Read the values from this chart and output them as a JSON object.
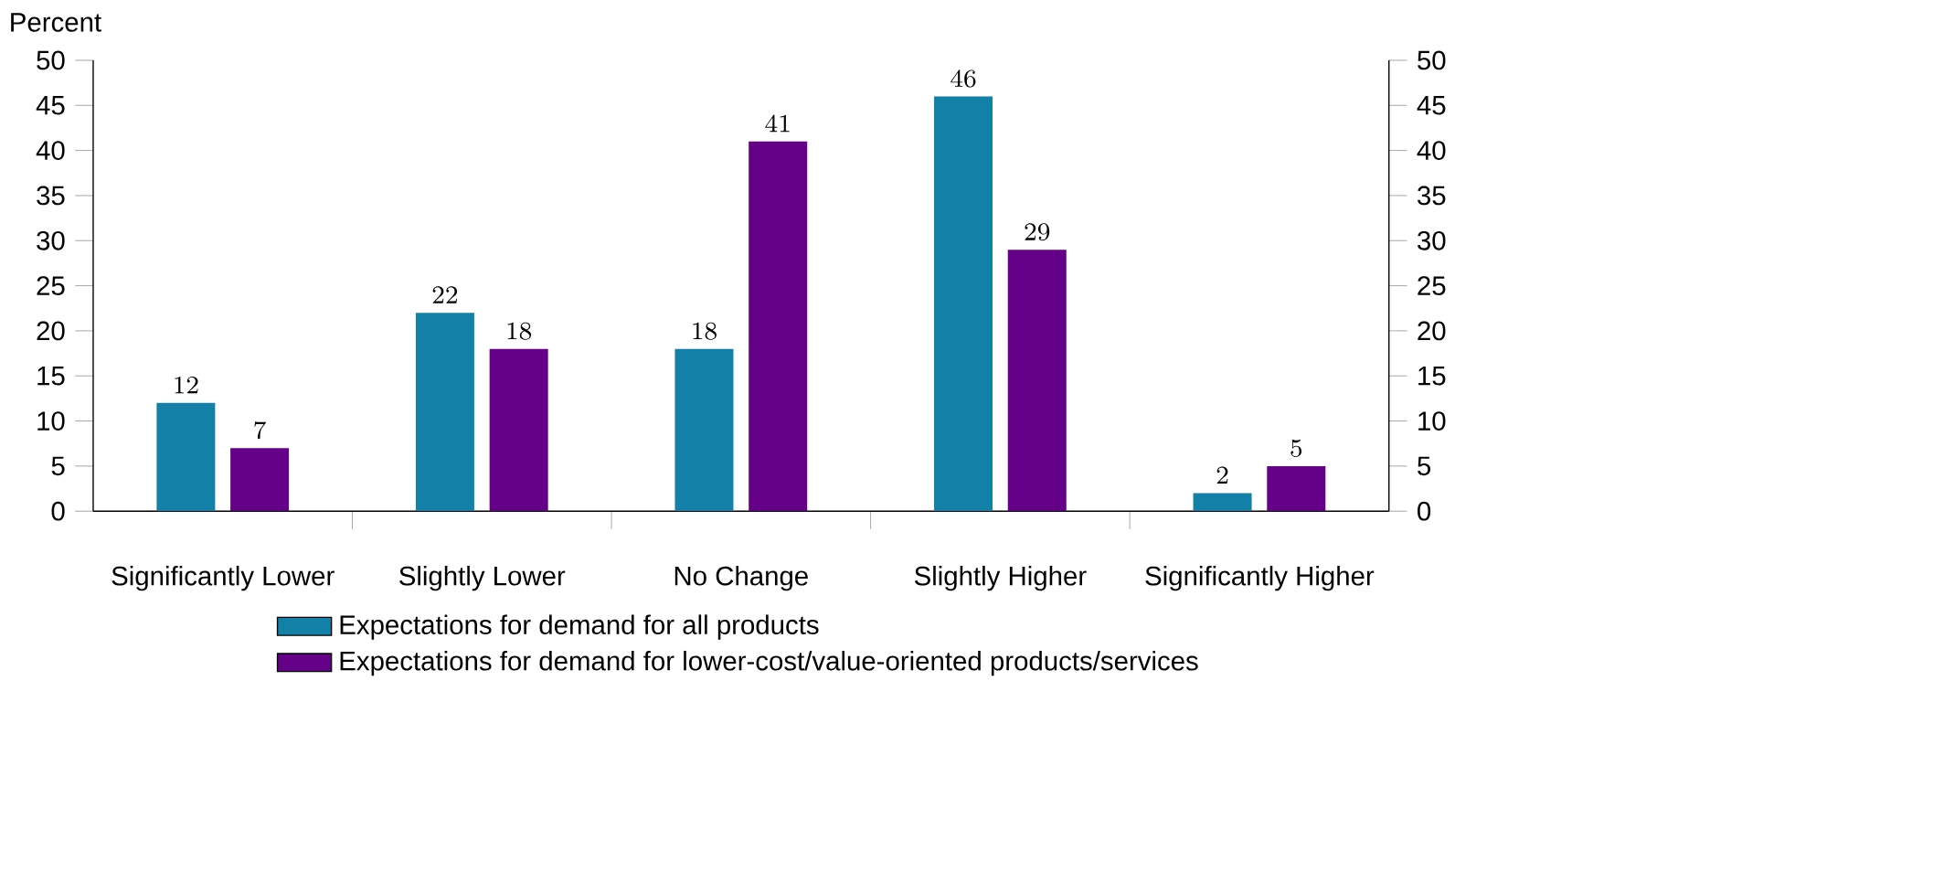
{
  "chart_data": {
    "type": "bar",
    "ylabel": "Percent",
    "categories": [
      "Significantly Lower",
      "Slightly Lower",
      "No Change",
      "Slightly Higher",
      "Significantly Higher"
    ],
    "series": [
      {
        "name": "Expectations for demand for all products",
        "color": "#1380a8",
        "values": [
          12,
          22,
          18,
          46,
          2
        ]
      },
      {
        "name": "Expectations for demand for lower-cost/value-oriented products/services",
        "color": "#650088",
        "values": [
          7,
          18,
          41,
          29,
          5
        ]
      }
    ],
    "ylim": [
      0,
      50
    ],
    "yticks": [
      0,
      5,
      10,
      15,
      20,
      25,
      30,
      35,
      40,
      45,
      50
    ],
    "y2lim": [
      0,
      50
    ],
    "y2ticks": [
      0,
      5,
      10,
      15,
      20,
      25,
      30,
      35,
      40,
      45,
      50
    ],
    "data_labels": true,
    "legend": "bottom"
  }
}
